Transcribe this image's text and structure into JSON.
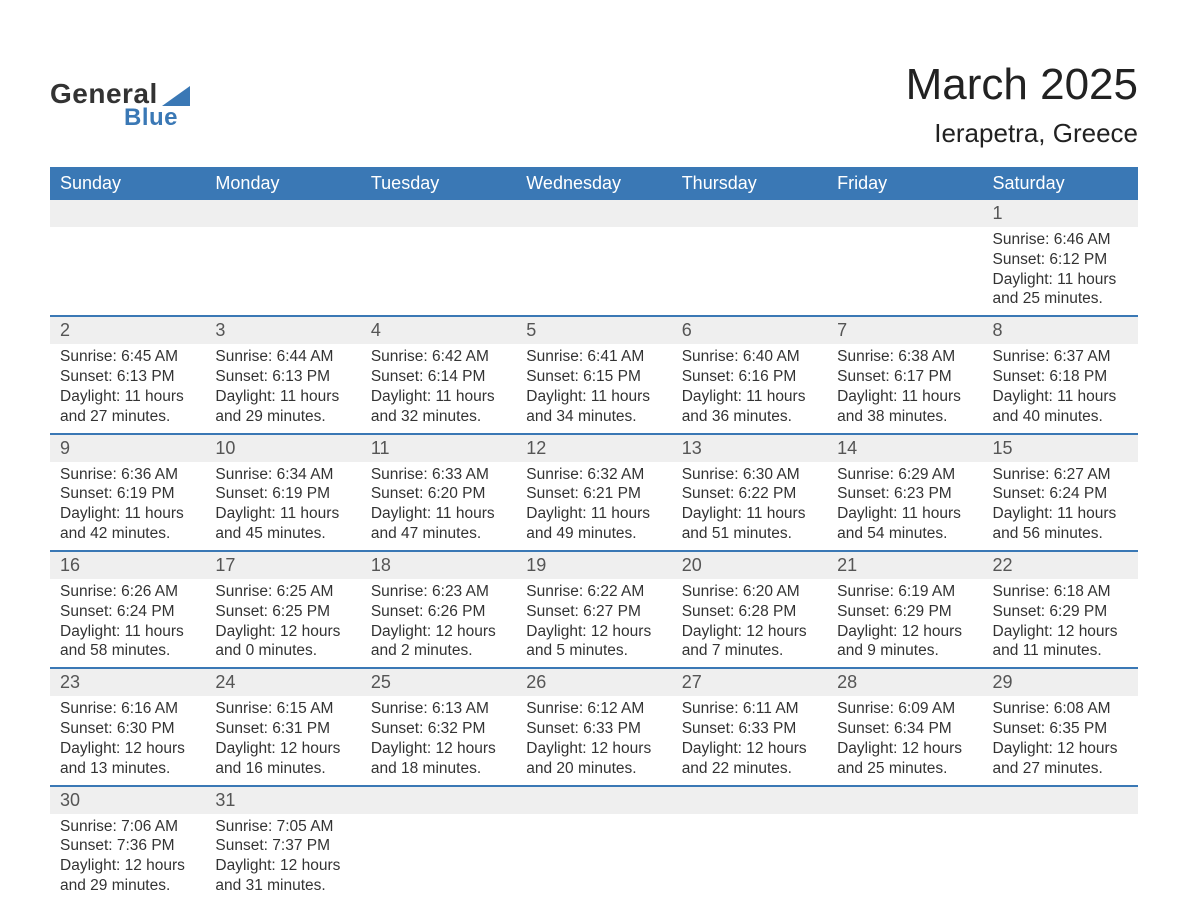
{
  "logo": {
    "text1": "General",
    "text2": "Blue",
    "accent_color": "#3a78b5"
  },
  "header": {
    "month_title": "March 2025",
    "location": "Ierapetra, Greece"
  },
  "calendar": {
    "header_bg": "#3a78b5",
    "header_fg": "#ffffff",
    "daynum_bg": "#efefef",
    "row_border": "#3a78b5",
    "text_color": "#333333",
    "font_size_body": 15.5,
    "font_size_header": 18,
    "font_size_title": 44,
    "font_size_location": 26,
    "days_of_week": [
      "Sunday",
      "Monday",
      "Tuesday",
      "Wednesday",
      "Thursday",
      "Friday",
      "Saturday"
    ],
    "weeks": [
      [
        null,
        null,
        null,
        null,
        null,
        null,
        {
          "n": 1,
          "sunrise": "6:46 AM",
          "sunset": "6:12 PM",
          "dl_h": 11,
          "dl_m": 25
        }
      ],
      [
        {
          "n": 2,
          "sunrise": "6:45 AM",
          "sunset": "6:13 PM",
          "dl_h": 11,
          "dl_m": 27
        },
        {
          "n": 3,
          "sunrise": "6:44 AM",
          "sunset": "6:13 PM",
          "dl_h": 11,
          "dl_m": 29
        },
        {
          "n": 4,
          "sunrise": "6:42 AM",
          "sunset": "6:14 PM",
          "dl_h": 11,
          "dl_m": 32
        },
        {
          "n": 5,
          "sunrise": "6:41 AM",
          "sunset": "6:15 PM",
          "dl_h": 11,
          "dl_m": 34
        },
        {
          "n": 6,
          "sunrise": "6:40 AM",
          "sunset": "6:16 PM",
          "dl_h": 11,
          "dl_m": 36
        },
        {
          "n": 7,
          "sunrise": "6:38 AM",
          "sunset": "6:17 PM",
          "dl_h": 11,
          "dl_m": 38
        },
        {
          "n": 8,
          "sunrise": "6:37 AM",
          "sunset": "6:18 PM",
          "dl_h": 11,
          "dl_m": 40
        }
      ],
      [
        {
          "n": 9,
          "sunrise": "6:36 AM",
          "sunset": "6:19 PM",
          "dl_h": 11,
          "dl_m": 42
        },
        {
          "n": 10,
          "sunrise": "6:34 AM",
          "sunset": "6:19 PM",
          "dl_h": 11,
          "dl_m": 45
        },
        {
          "n": 11,
          "sunrise": "6:33 AM",
          "sunset": "6:20 PM",
          "dl_h": 11,
          "dl_m": 47
        },
        {
          "n": 12,
          "sunrise": "6:32 AM",
          "sunset": "6:21 PM",
          "dl_h": 11,
          "dl_m": 49
        },
        {
          "n": 13,
          "sunrise": "6:30 AM",
          "sunset": "6:22 PM",
          "dl_h": 11,
          "dl_m": 51
        },
        {
          "n": 14,
          "sunrise": "6:29 AM",
          "sunset": "6:23 PM",
          "dl_h": 11,
          "dl_m": 54
        },
        {
          "n": 15,
          "sunrise": "6:27 AM",
          "sunset": "6:24 PM",
          "dl_h": 11,
          "dl_m": 56
        }
      ],
      [
        {
          "n": 16,
          "sunrise": "6:26 AM",
          "sunset": "6:24 PM",
          "dl_h": 11,
          "dl_m": 58
        },
        {
          "n": 17,
          "sunrise": "6:25 AM",
          "sunset": "6:25 PM",
          "dl_h": 12,
          "dl_m": 0
        },
        {
          "n": 18,
          "sunrise": "6:23 AM",
          "sunset": "6:26 PM",
          "dl_h": 12,
          "dl_m": 2
        },
        {
          "n": 19,
          "sunrise": "6:22 AM",
          "sunset": "6:27 PM",
          "dl_h": 12,
          "dl_m": 5
        },
        {
          "n": 20,
          "sunrise": "6:20 AM",
          "sunset": "6:28 PM",
          "dl_h": 12,
          "dl_m": 7
        },
        {
          "n": 21,
          "sunrise": "6:19 AM",
          "sunset": "6:29 PM",
          "dl_h": 12,
          "dl_m": 9
        },
        {
          "n": 22,
          "sunrise": "6:18 AM",
          "sunset": "6:29 PM",
          "dl_h": 12,
          "dl_m": 11
        }
      ],
      [
        {
          "n": 23,
          "sunrise": "6:16 AM",
          "sunset": "6:30 PM",
          "dl_h": 12,
          "dl_m": 13
        },
        {
          "n": 24,
          "sunrise": "6:15 AM",
          "sunset": "6:31 PM",
          "dl_h": 12,
          "dl_m": 16
        },
        {
          "n": 25,
          "sunrise": "6:13 AM",
          "sunset": "6:32 PM",
          "dl_h": 12,
          "dl_m": 18
        },
        {
          "n": 26,
          "sunrise": "6:12 AM",
          "sunset": "6:33 PM",
          "dl_h": 12,
          "dl_m": 20
        },
        {
          "n": 27,
          "sunrise": "6:11 AM",
          "sunset": "6:33 PM",
          "dl_h": 12,
          "dl_m": 22
        },
        {
          "n": 28,
          "sunrise": "6:09 AM",
          "sunset": "6:34 PM",
          "dl_h": 12,
          "dl_m": 25
        },
        {
          "n": 29,
          "sunrise": "6:08 AM",
          "sunset": "6:35 PM",
          "dl_h": 12,
          "dl_m": 27
        }
      ],
      [
        {
          "n": 30,
          "sunrise": "7:06 AM",
          "sunset": "7:36 PM",
          "dl_h": 12,
          "dl_m": 29
        },
        {
          "n": 31,
          "sunrise": "7:05 AM",
          "sunset": "7:37 PM",
          "dl_h": 12,
          "dl_m": 31
        },
        null,
        null,
        null,
        null,
        null
      ]
    ],
    "labels": {
      "sunrise_prefix": "Sunrise: ",
      "sunset_prefix": "Sunset: ",
      "daylight_prefix": "Daylight: ",
      "hours_word": " hours",
      "and_word": "and ",
      "minutes_word": " minutes."
    }
  }
}
